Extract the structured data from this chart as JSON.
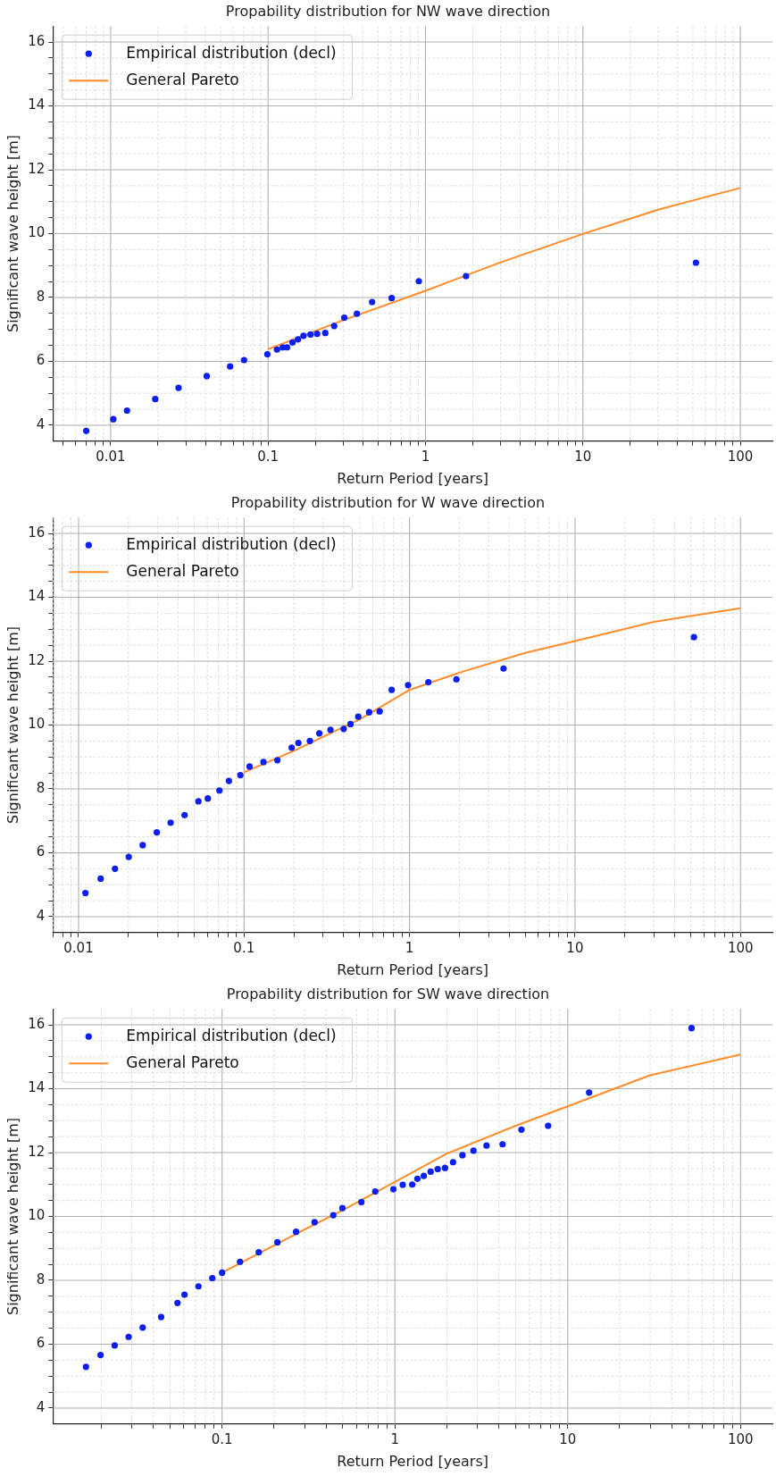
{
  "chart_data": [
    {
      "type": "scatter",
      "title": "Propability distribution for NW wave direction",
      "xlabel": "Return Period [years]",
      "ylabel": "Significant wave height [m]",
      "log": "x",
      "grid": true,
      "legend": "top left",
      "xlim": [
        0.0043,
        160
      ],
      "ylim": [
        3.5,
        16.5
      ],
      "xticks": [
        {
          "value": 0.005,
          "label": null
        },
        {
          "value": 0.006,
          "label": null
        },
        {
          "value": 0.007,
          "label": null
        },
        {
          "value": 0.008,
          "label": null
        },
        {
          "value": 0.009,
          "label": null
        },
        0.01,
        {
          "value": 0.02,
          "label": null
        },
        {
          "value": 0.03,
          "label": null
        },
        {
          "value": 0.04,
          "label": null
        },
        {
          "value": 0.05,
          "label": null
        },
        {
          "value": 0.06,
          "label": null
        },
        {
          "value": 0.07,
          "label": null
        },
        {
          "value": 0.08,
          "label": null
        },
        {
          "value": 0.09,
          "label": null
        },
        0.1,
        {
          "value": 0.2,
          "label": null
        },
        {
          "value": 0.3,
          "label": null
        },
        {
          "value": 0.4,
          "label": null
        },
        {
          "value": 0.5,
          "label": null
        },
        {
          "value": 0.6,
          "label": null
        },
        {
          "value": 0.7,
          "label": null
        },
        {
          "value": 0.8,
          "label": null
        },
        {
          "value": 0.9,
          "label": null
        },
        1,
        {
          "value": 2,
          "label": null
        },
        {
          "value": 3,
          "label": null
        },
        {
          "value": 4,
          "label": null
        },
        {
          "value": 5,
          "label": null
        },
        {
          "value": 6,
          "label": null
        },
        {
          "value": 7,
          "label": null
        },
        {
          "value": 8,
          "label": null
        },
        {
          "value": 9,
          "label": null
        },
        10,
        {
          "value": 20,
          "label": null
        },
        {
          "value": 30,
          "label": null
        },
        {
          "value": 40,
          "label": null
        },
        {
          "value": 50,
          "label": null
        },
        {
          "value": 60,
          "label": null
        },
        {
          "value": 70,
          "label": null
        },
        {
          "value": 80,
          "label": null
        },
        {
          "value": 90,
          "label": null
        },
        100
      ],
      "yticks": [
        4,
        {
          "value": 4.5,
          "label": null
        },
        {
          "value": 5,
          "label": null
        },
        {
          "value": 5.5,
          "label": null
        },
        6,
        {
          "value": 6.5,
          "label": null
        },
        {
          "value": 7,
          "label": null
        },
        {
          "value": 7.5,
          "label": null
        },
        8,
        {
          "value": 8.5,
          "label": null
        },
        {
          "value": 9,
          "label": null
        },
        {
          "value": 9.5,
          "label": null
        },
        10,
        {
          "value": 10.5,
          "label": null
        },
        {
          "value": 11,
          "label": null
        },
        {
          "value": 11.5,
          "label": null
        },
        12,
        {
          "value": 12.5,
          "label": null
        },
        {
          "value": 13,
          "label": null
        },
        {
          "value": 13.5,
          "label": null
        },
        14,
        {
          "value": 14.5,
          "label": null
        },
        {
          "value": 15,
          "label": null
        },
        {
          "value": 15.5,
          "label": null
        },
        16
      ],
      "series": [
        {
          "name": "Empirical distribution (decl)",
          "type": "scatter",
          "marker": "circle",
          "color": "#0a1ff0",
          "x": [
            0.007,
            0.0104,
            0.0127,
            0.0192,
            0.027,
            0.0408,
            0.0574,
            0.0704,
            0.099,
            0.114,
            0.124,
            0.132,
            0.143,
            0.155,
            0.168,
            0.186,
            0.205,
            0.231,
            0.263,
            0.305,
            0.367,
            0.458,
            0.61,
            0.908,
            1.81,
            52.3
          ],
          "values": [
            3.82,
            4.19,
            4.46,
            4.82,
            5.17,
            5.54,
            5.84,
            6.04,
            6.22,
            6.37,
            6.44,
            6.44,
            6.59,
            6.69,
            6.8,
            6.84,
            6.86,
            6.89,
            7.11,
            7.37,
            7.49,
            7.86,
            7.98,
            8.51,
            8.67,
            9.09
          ]
        },
        {
          "name": "General Pareto",
          "type": "line",
          "color": "#ff8c2a",
          "x": [
            0.1,
            0.3,
            1,
            3,
            10,
            30,
            100
          ],
          "values": [
            6.38,
            7.29,
            8.21,
            9.1,
            9.99,
            10.75,
            11.43
          ]
        }
      ]
    },
    {
      "type": "scatter",
      "title": "Propability distribution for W wave direction",
      "xlabel": "Return Period [years]",
      "ylabel": "Significant wave height [m]",
      "log": "x",
      "grid": true,
      "legend": "top left",
      "xlim": [
        0.007,
        156
      ],
      "ylim": [
        3.5,
        16.5
      ],
      "xticks": [
        {
          "value": 0.007,
          "label": null
        },
        {
          "value": 0.008,
          "label": null
        },
        {
          "value": 0.009,
          "label": null
        },
        0.01,
        {
          "value": 0.02,
          "label": null
        },
        {
          "value": 0.03,
          "label": null
        },
        {
          "value": 0.04,
          "label": null
        },
        {
          "value": 0.05,
          "label": null
        },
        {
          "value": 0.06,
          "label": null
        },
        {
          "value": 0.07,
          "label": null
        },
        {
          "value": 0.08,
          "label": null
        },
        {
          "value": 0.09,
          "label": null
        },
        0.1,
        {
          "value": 0.2,
          "label": null
        },
        {
          "value": 0.3,
          "label": null
        },
        {
          "value": 0.4,
          "label": null
        },
        {
          "value": 0.5,
          "label": null
        },
        {
          "value": 0.6,
          "label": null
        },
        {
          "value": 0.7,
          "label": null
        },
        {
          "value": 0.8,
          "label": null
        },
        {
          "value": 0.9,
          "label": null
        },
        1,
        {
          "value": 2,
          "label": null
        },
        {
          "value": 3,
          "label": null
        },
        {
          "value": 4,
          "label": null
        },
        {
          "value": 5,
          "label": null
        },
        {
          "value": 6,
          "label": null
        },
        {
          "value": 7,
          "label": null
        },
        {
          "value": 8,
          "label": null
        },
        {
          "value": 9,
          "label": null
        },
        10,
        {
          "value": 20,
          "label": null
        },
        {
          "value": 30,
          "label": null
        },
        {
          "value": 40,
          "label": null
        },
        {
          "value": 50,
          "label": null
        },
        {
          "value": 60,
          "label": null
        },
        {
          "value": 70,
          "label": null
        },
        {
          "value": 80,
          "label": null
        },
        {
          "value": 90,
          "label": null
        },
        100
      ],
      "yticks": [
        4,
        {
          "value": 4.5,
          "label": null
        },
        {
          "value": 5,
          "label": null
        },
        {
          "value": 5.5,
          "label": null
        },
        6,
        {
          "value": 6.5,
          "label": null
        },
        {
          "value": 7,
          "label": null
        },
        {
          "value": 7.5,
          "label": null
        },
        8,
        {
          "value": 8.5,
          "label": null
        },
        {
          "value": 9,
          "label": null
        },
        {
          "value": 9.5,
          "label": null
        },
        10,
        {
          "value": 10.5,
          "label": null
        },
        {
          "value": 11,
          "label": null
        },
        {
          "value": 11.5,
          "label": null
        },
        12,
        {
          "value": 12.5,
          "label": null
        },
        {
          "value": 13,
          "label": null
        },
        {
          "value": 13.5,
          "label": null
        },
        14,
        {
          "value": 14.5,
          "label": null
        },
        {
          "value": 15,
          "label": null
        },
        {
          "value": 15.5,
          "label": null
        },
        16
      ],
      "series": [
        {
          "name": "Empirical distribution (decl)",
          "type": "scatter",
          "marker": "circle",
          "color": "#0a1ff0",
          "x": [
            0.011,
            0.0136,
            0.0166,
            0.0201,
            0.0244,
            0.0297,
            0.036,
            0.0437,
            0.053,
            0.0604,
            0.071,
            0.081,
            0.095,
            0.108,
            0.131,
            0.159,
            0.194,
            0.213,
            0.25,
            0.285,
            0.333,
            0.4,
            0.44,
            0.49,
            0.57,
            0.66,
            0.78,
            0.98,
            1.3,
            1.92,
            3.7,
            52.3
          ],
          "values": [
            4.74,
            5.19,
            5.5,
            5.87,
            6.24,
            6.64,
            6.94,
            7.18,
            7.61,
            7.7,
            7.95,
            8.25,
            8.43,
            8.7,
            8.84,
            8.9,
            9.29,
            9.44,
            9.5,
            9.74,
            9.85,
            9.88,
            10.03,
            10.26,
            10.4,
            10.43,
            11.1,
            11.25,
            11.34,
            11.43,
            11.77,
            12.75
          ]
        },
        {
          "name": "General Pareto",
          "type": "line",
          "color": "#ff8c2a",
          "x": [
            0.1,
            0.2,
            0.5,
            1,
            2,
            5,
            10,
            30,
            100
          ],
          "values": [
            8.52,
            9.19,
            10.18,
            11.1,
            11.64,
            12.26,
            12.63,
            13.23,
            13.66
          ]
        }
      ]
    },
    {
      "type": "scatter",
      "title": "Propability distribution for SW wave direction",
      "xlabel": "Return Period [years]",
      "ylabel": "Significant wave height [m]",
      "log": "x",
      "grid": true,
      "legend": "top left",
      "xlim": [
        0.0105,
        153
      ],
      "ylim": [
        3.5,
        16.5
      ],
      "xticks": [
        {
          "value": 0.02,
          "label": null
        },
        {
          "value": 0.03,
          "label": null
        },
        {
          "value": 0.04,
          "label": null
        },
        {
          "value": 0.05,
          "label": null
        },
        {
          "value": 0.06,
          "label": null
        },
        {
          "value": 0.07,
          "label": null
        },
        {
          "value": 0.08,
          "label": null
        },
        {
          "value": 0.09,
          "label": null
        },
        0.1,
        {
          "value": 0.2,
          "label": null
        },
        {
          "value": 0.3,
          "label": null
        },
        {
          "value": 0.4,
          "label": null
        },
        {
          "value": 0.5,
          "label": null
        },
        {
          "value": 0.6,
          "label": null
        },
        {
          "value": 0.7,
          "label": null
        },
        {
          "value": 0.8,
          "label": null
        },
        {
          "value": 0.9,
          "label": null
        },
        1,
        {
          "value": 2,
          "label": null
        },
        {
          "value": 3,
          "label": null
        },
        {
          "value": 4,
          "label": null
        },
        {
          "value": 5,
          "label": null
        },
        {
          "value": 6,
          "label": null
        },
        {
          "value": 7,
          "label": null
        },
        {
          "value": 8,
          "label": null
        },
        {
          "value": 9,
          "label": null
        },
        10,
        {
          "value": 20,
          "label": null
        },
        {
          "value": 30,
          "label": null
        },
        {
          "value": 40,
          "label": null
        },
        {
          "value": 50,
          "label": null
        },
        {
          "value": 60,
          "label": null
        },
        {
          "value": 70,
          "label": null
        },
        {
          "value": 80,
          "label": null
        },
        {
          "value": 90,
          "label": null
        },
        100
      ],
      "yticks": [
        4,
        {
          "value": 4.5,
          "label": null
        },
        {
          "value": 5,
          "label": null
        },
        {
          "value": 5.5,
          "label": null
        },
        6,
        {
          "value": 6.5,
          "label": null
        },
        {
          "value": 7,
          "label": null
        },
        {
          "value": 7.5,
          "label": null
        },
        8,
        {
          "value": 8.5,
          "label": null
        },
        {
          "value": 9,
          "label": null
        },
        {
          "value": 9.5,
          "label": null
        },
        10,
        {
          "value": 10.5,
          "label": null
        },
        {
          "value": 11,
          "label": null
        },
        {
          "value": 11.5,
          "label": null
        },
        12,
        {
          "value": 12.5,
          "label": null
        },
        {
          "value": 13,
          "label": null
        },
        {
          "value": 13.5,
          "label": null
        },
        14,
        {
          "value": 14.5,
          "label": null
        },
        {
          "value": 15,
          "label": null
        },
        {
          "value": 15.5,
          "label": null
        },
        16
      ],
      "series": [
        {
          "name": "Empirical distribution (decl)",
          "type": "scatter",
          "marker": "circle",
          "color": "#0a1ff0",
          "x": [
            0.0163,
            0.0198,
            0.0239,
            0.0288,
            0.0347,
            0.0444,
            0.0552,
            0.0606,
            0.073,
            0.0878,
            0.1,
            0.127,
            0.163,
            0.209,
            0.268,
            0.343,
            0.44,
            0.497,
            0.64,
            0.77,
            0.98,
            1.11,
            1.26,
            1.35,
            1.47,
            1.61,
            1.77,
            1.95,
            2.17,
            2.46,
            2.85,
            3.39,
            4.2,
            5.4,
            7.7,
            13.3,
            52.1
          ],
          "values": [
            5.29,
            5.66,
            5.96,
            6.23,
            6.52,
            6.85,
            7.29,
            7.55,
            7.81,
            8.07,
            8.24,
            8.58,
            8.88,
            9.19,
            9.52,
            9.82,
            10.04,
            10.26,
            10.45,
            10.78,
            10.85,
            10.99,
            11.0,
            11.18,
            11.27,
            11.4,
            11.48,
            11.52,
            11.7,
            11.92,
            12.06,
            12.22,
            12.26,
            12.72,
            12.84,
            13.88,
            15.9
          ]
        },
        {
          "name": "General Pareto",
          "type": "line",
          "color": "#ff8c2a",
          "x": [
            0.1,
            0.3,
            0.5,
            1,
            2,
            5,
            10,
            30,
            100
          ],
          "values": [
            8.24,
            9.59,
            10.2,
            11.08,
            11.97,
            12.84,
            13.45,
            14.42,
            15.07
          ]
        }
      ]
    }
  ]
}
